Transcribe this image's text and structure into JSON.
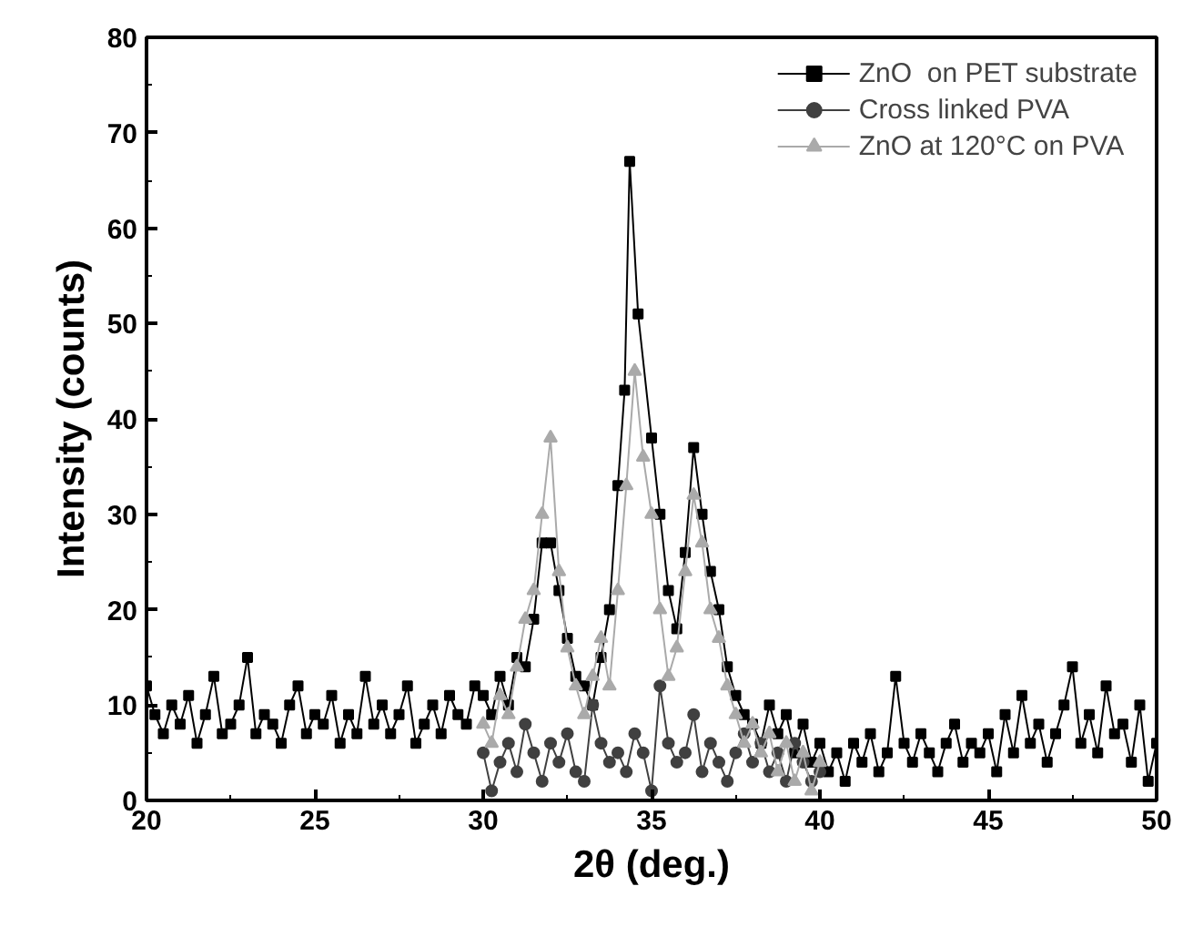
{
  "chart_data": {
    "type": "line",
    "xlabel": "2θ (deg.)",
    "ylabel": "Intensity (counts)",
    "xlim": [
      20,
      50
    ],
    "ylim": [
      0,
      80
    ],
    "xticks": [
      20,
      {
        "value": 22.5,
        "label": null
      },
      25,
      {
        "value": 27.5,
        "label": null
      },
      30,
      {
        "value": 32.5,
        "label": null
      },
      35,
      {
        "value": 37.5,
        "label": null
      },
      40,
      {
        "value": 42.5,
        "label": null
      },
      45,
      {
        "value": 47.5,
        "label": null
      },
      50
    ],
    "yticks": [
      0,
      {
        "value": 5,
        "label": null
      },
      10,
      {
        "value": 15,
        "label": null
      },
      20,
      {
        "value": 25,
        "label": null
      },
      30,
      {
        "value": 35,
        "label": null
      },
      40,
      {
        "value": 45,
        "label": null
      },
      50,
      {
        "value": 55,
        "label": null
      },
      60,
      {
        "value": 65,
        "label": null
      },
      70,
      {
        "value": 75,
        "label": null
      },
      80
    ],
    "grid": false,
    "legend": "top right",
    "series": [
      {
        "name": "ZnO  on PET substrate",
        "color": "#000000",
        "marker": "square",
        "x": [
          20,
          20.25,
          20.5,
          20.75,
          21,
          21.25,
          21.5,
          21.75,
          22,
          22.25,
          22.5,
          22.75,
          23,
          23.25,
          23.5,
          23.75,
          24,
          24.25,
          24.5,
          24.75,
          25,
          25.25,
          25.5,
          25.75,
          26,
          26.25,
          26.5,
          26.75,
          27,
          27.25,
          27.5,
          27.75,
          28,
          28.25,
          28.5,
          28.75,
          29,
          29.25,
          29.5,
          29.75,
          30,
          30.25,
          30.5,
          30.75,
          31,
          31.25,
          31.5,
          31.75,
          32,
          32.25,
          32.5,
          32.75,
          33,
          33.25,
          33.5,
          33.75,
          34,
          34.2,
          34.35,
          34.6,
          35,
          35.25,
          35.5,
          35.75,
          36,
          36.25,
          36.5,
          36.75,
          37,
          37.25,
          37.5,
          37.75,
          38,
          38.25,
          38.5,
          38.75,
          39,
          39.25,
          39.5,
          39.75,
          40,
          40.25,
          40.5,
          40.75,
          41,
          41.25,
          41.5,
          41.75,
          42,
          42.25,
          42.5,
          42.75,
          43,
          43.25,
          43.5,
          43.75,
          44,
          44.25,
          44.5,
          44.75,
          45,
          45.25,
          45.5,
          45.75,
          46,
          46.25,
          46.5,
          46.75,
          47,
          47.25,
          47.5,
          47.75,
          48,
          48.25,
          48.5,
          48.75,
          49,
          49.25,
          49.5,
          49.75,
          50
        ],
        "values": [
          12,
          9,
          7,
          10,
          8,
          11,
          6,
          9,
          13,
          7,
          8,
          10,
          15,
          7,
          9,
          8,
          6,
          10,
          12,
          7,
          9,
          8,
          11,
          6,
          9,
          7,
          13,
          8,
          10,
          7,
          9,
          12,
          6,
          8,
          10,
          7,
          11,
          9,
          8,
          12,
          11,
          9,
          13,
          10,
          15,
          14,
          19,
          27,
          27,
          22,
          17,
          13,
          12,
          10,
          15,
          20,
          33,
          43,
          67,
          51,
          38,
          30,
          22,
          18,
          26,
          37,
          30,
          24,
          20,
          14,
          11,
          9,
          8,
          6,
          10,
          7,
          9,
          5,
          8,
          4,
          6,
          3,
          5,
          2,
          6,
          4,
          7,
          3,
          5,
          13,
          6,
          4,
          7,
          5,
          3,
          6,
          8,
          4,
          6,
          5,
          7,
          3,
          9,
          5,
          11,
          6,
          8,
          4,
          7,
          10,
          14,
          6,
          9,
          5,
          12,
          7,
          8,
          4,
          10,
          2,
          6
        ]
      },
      {
        "name": "Cross linked PVA",
        "color": "#404040",
        "marker": "circle",
        "x": [
          30,
          30.25,
          30.5,
          30.75,
          31,
          31.25,
          31.5,
          31.75,
          32,
          32.25,
          32.5,
          32.75,
          33,
          33.25,
          33.5,
          33.75,
          34,
          34.25,
          34.5,
          34.75,
          35,
          35.25,
          35.5,
          35.75,
          36,
          36.25,
          36.5,
          36.75,
          37,
          37.25,
          37.5,
          37.75,
          38,
          38.25,
          38.5,
          38.75,
          39,
          39.25,
          39.5,
          39.75,
          40
        ],
        "values": [
          5,
          1,
          4,
          6,
          3,
          8,
          5,
          2,
          6,
          4,
          7,
          3,
          2,
          10,
          6,
          4,
          5,
          3,
          7,
          5,
          1,
          12,
          6,
          4,
          5,
          9,
          3,
          6,
          4,
          2,
          5,
          7,
          4,
          6,
          3,
          5,
          2,
          6,
          4,
          2,
          3
        ]
      },
      {
        "name": "ZnO at 120°C on PVA",
        "color": "#aaaaaa",
        "marker": "triangle",
        "x": [
          30,
          30.25,
          30.5,
          30.75,
          31,
          31.25,
          31.5,
          31.75,
          32,
          32.25,
          32.5,
          32.75,
          33,
          33.25,
          33.5,
          33.75,
          34,
          34.25,
          34.5,
          34.75,
          35,
          35.25,
          35.5,
          35.75,
          36,
          36.25,
          36.5,
          36.75,
          37,
          37.25,
          37.5,
          37.75,
          38,
          38.25,
          38.5,
          38.75,
          39,
          39.25,
          39.5,
          39.75,
          40
        ],
        "values": [
          8,
          6,
          11,
          9,
          14,
          19,
          22,
          30,
          38,
          24,
          16,
          12,
          9,
          13,
          17,
          12,
          22,
          33,
          45,
          36,
          30,
          20,
          13,
          16,
          24,
          32,
          27,
          20,
          17,
          12,
          9,
          6,
          8,
          5,
          7,
          3,
          6,
          2,
          5,
          1,
          4
        ]
      }
    ]
  }
}
